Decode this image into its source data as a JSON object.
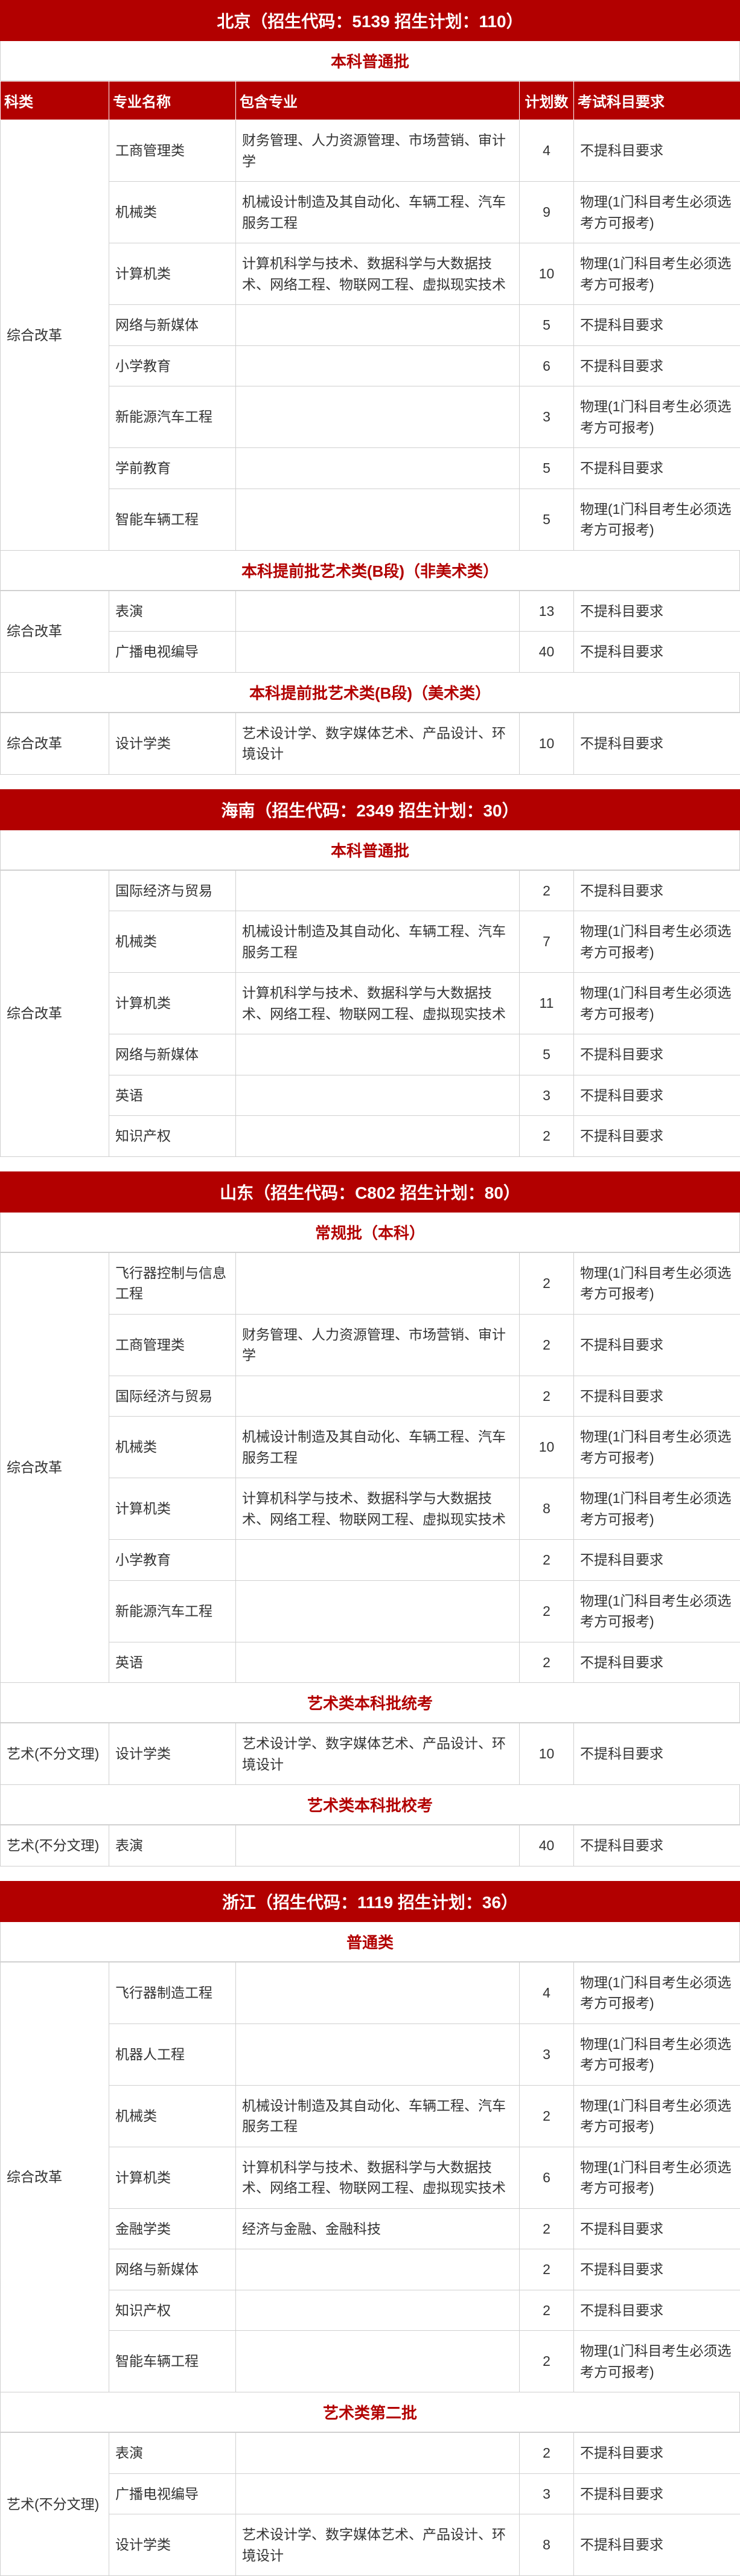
{
  "colors": {
    "header_bg": "#b20000",
    "header_fg": "#ffffff",
    "batch_fg": "#b20000",
    "border": "#d0d0d0",
    "text": "#333333"
  },
  "columns": {
    "subject": "科类",
    "major": "专业名称",
    "include": "包含专业",
    "plan": "计划数",
    "req": "考试科目要求"
  },
  "req_none": "不提科目要求",
  "req_physics": "物理(1门科目考生必须选考方可报考)",
  "provinces": [
    {
      "title": "北京（招生代码：5139  招生计划：110）",
      "show_col_header": true,
      "batches": [
        {
          "title": "本科普通批",
          "groups": [
            {
              "subject": "综合改革",
              "rows": [
                {
                  "major": "工商管理类",
                  "include": "财务管理、人力资源管理、市场营销、审计学",
                  "plan": "4",
                  "req": "none"
                },
                {
                  "major": "机械类",
                  "include": "机械设计制造及其自动化、车辆工程、汽车服务工程",
                  "plan": "9",
                  "req": "physics"
                },
                {
                  "major": "计算机类",
                  "include": "计算机科学与技术、数据科学与大数据技术、网络工程、物联网工程、虚拟现实技术",
                  "plan": "10",
                  "req": "physics"
                },
                {
                  "major": "网络与新媒体",
                  "include": "",
                  "plan": "5",
                  "req": "none"
                },
                {
                  "major": "小学教育",
                  "include": "",
                  "plan": "6",
                  "req": "none"
                },
                {
                  "major": "新能源汽车工程",
                  "include": "",
                  "plan": "3",
                  "req": "physics"
                },
                {
                  "major": "学前教育",
                  "include": "",
                  "plan": "5",
                  "req": "none"
                },
                {
                  "major": "智能车辆工程",
                  "include": "",
                  "plan": "5",
                  "req": "physics"
                }
              ]
            }
          ]
        },
        {
          "title": "本科提前批艺术类(B段)（非美术类）",
          "groups": [
            {
              "subject": "综合改革",
              "rows": [
                {
                  "major": "表演",
                  "include": "",
                  "plan": "13",
                  "req": "none"
                },
                {
                  "major": "广播电视编导",
                  "include": "",
                  "plan": "40",
                  "req": "none"
                }
              ]
            }
          ]
        },
        {
          "title": "本科提前批艺术类(B段)（美术类）",
          "groups": [
            {
              "subject": "综合改革",
              "rows": [
                {
                  "major": "设计学类",
                  "include": "艺术设计学、数字媒体艺术、产品设计、环境设计",
                  "plan": "10",
                  "req": "none"
                }
              ]
            }
          ]
        }
      ]
    },
    {
      "title": "海南（招生代码：2349  招生计划：30）",
      "show_col_header": false,
      "batches": [
        {
          "title": "本科普通批",
          "groups": [
            {
              "subject": "综合改革",
              "rows": [
                {
                  "major": "国际经济与贸易",
                  "include": "",
                  "plan": "2",
                  "req": "none"
                },
                {
                  "major": "机械类",
                  "include": "机械设计制造及其自动化、车辆工程、汽车服务工程",
                  "plan": "7",
                  "req": "physics"
                },
                {
                  "major": "计算机类",
                  "include": "计算机科学与技术、数据科学与大数据技术、网络工程、物联网工程、虚拟现实技术",
                  "plan": "11",
                  "req": "physics"
                },
                {
                  "major": "网络与新媒体",
                  "include": "",
                  "plan": "5",
                  "req": "none"
                },
                {
                  "major": "英语",
                  "include": "",
                  "plan": "3",
                  "req": "none"
                },
                {
                  "major": "知识产权",
                  "include": "",
                  "plan": "2",
                  "req": "none"
                }
              ]
            }
          ]
        }
      ]
    },
    {
      "title": "山东（招生代码：C802  招生计划：80）",
      "show_col_header": false,
      "batches": [
        {
          "title": "常规批（本科）",
          "groups": [
            {
              "subject": "综合改革",
              "rows": [
                {
                  "major": "飞行器控制与信息工程",
                  "include": "",
                  "plan": "2",
                  "req": "physics"
                },
                {
                  "major": "工商管理类",
                  "include": "财务管理、人力资源管理、市场营销、审计学",
                  "plan": "2",
                  "req": "none"
                },
                {
                  "major": "国际经济与贸易",
                  "include": "",
                  "plan": "2",
                  "req": "none"
                },
                {
                  "major": "机械类",
                  "include": "机械设计制造及其自动化、车辆工程、汽车服务工程",
                  "plan": "10",
                  "req": "physics"
                },
                {
                  "major": "计算机类",
                  "include": "计算机科学与技术、数据科学与大数据技术、网络工程、物联网工程、虚拟现实技术",
                  "plan": "8",
                  "req": "physics"
                },
                {
                  "major": "小学教育",
                  "include": "",
                  "plan": "2",
                  "req": "none"
                },
                {
                  "major": "新能源汽车工程",
                  "include": "",
                  "plan": "2",
                  "req": "physics"
                },
                {
                  "major": "英语",
                  "include": "",
                  "plan": "2",
                  "req": "none"
                }
              ]
            }
          ]
        },
        {
          "title": "艺术类本科批统考",
          "groups": [
            {
              "subject": "艺术(不分文理)",
              "rows": [
                {
                  "major": "设计学类",
                  "include": "艺术设计学、数字媒体艺术、产品设计、环境设计",
                  "plan": "10",
                  "req": "none"
                }
              ]
            }
          ]
        },
        {
          "title": "艺术类本科批校考",
          "groups": [
            {
              "subject": "艺术(不分文理)",
              "rows": [
                {
                  "major": "表演",
                  "include": "",
                  "plan": "40",
                  "req": "none"
                }
              ]
            }
          ]
        }
      ]
    },
    {
      "title": "浙江（招生代码：1119  招生计划：36）",
      "show_col_header": false,
      "batches": [
        {
          "title": "普通类",
          "groups": [
            {
              "subject": "综合改革",
              "rows": [
                {
                  "major": "飞行器制造工程",
                  "include": "",
                  "plan": "4",
                  "req": "physics"
                },
                {
                  "major": "机器人工程",
                  "include": "",
                  "plan": "3",
                  "req": "physics"
                },
                {
                  "major": "机械类",
                  "include": "机械设计制造及其自动化、车辆工程、汽车服务工程",
                  "plan": "2",
                  "req": "physics"
                },
                {
                  "major": "计算机类",
                  "include": "计算机科学与技术、数据科学与大数据技术、网络工程、物联网工程、虚拟现实技术",
                  "plan": "6",
                  "req": "physics"
                },
                {
                  "major": "金融学类",
                  "include": "经济与金融、金融科技",
                  "plan": "2",
                  "req": "none"
                },
                {
                  "major": "网络与新媒体",
                  "include": "",
                  "plan": "2",
                  "req": "none"
                },
                {
                  "major": "知识产权",
                  "include": "",
                  "plan": "2",
                  "req": "none"
                },
                {
                  "major": "智能车辆工程",
                  "include": "",
                  "plan": "2",
                  "req": "physics"
                }
              ]
            }
          ]
        },
        {
          "title": "艺术类第二批",
          "groups": [
            {
              "subject": "艺术(不分文理)",
              "rows": [
                {
                  "major": "表演",
                  "include": "",
                  "plan": "2",
                  "req": "none"
                },
                {
                  "major": "广播电视编导",
                  "include": "",
                  "plan": "3",
                  "req": "none"
                },
                {
                  "major": "设计学类",
                  "include": "艺术设计学、数字媒体艺术、产品设计、环境设计",
                  "plan": "8",
                  "req": "none"
                }
              ]
            }
          ]
        }
      ]
    }
  ]
}
